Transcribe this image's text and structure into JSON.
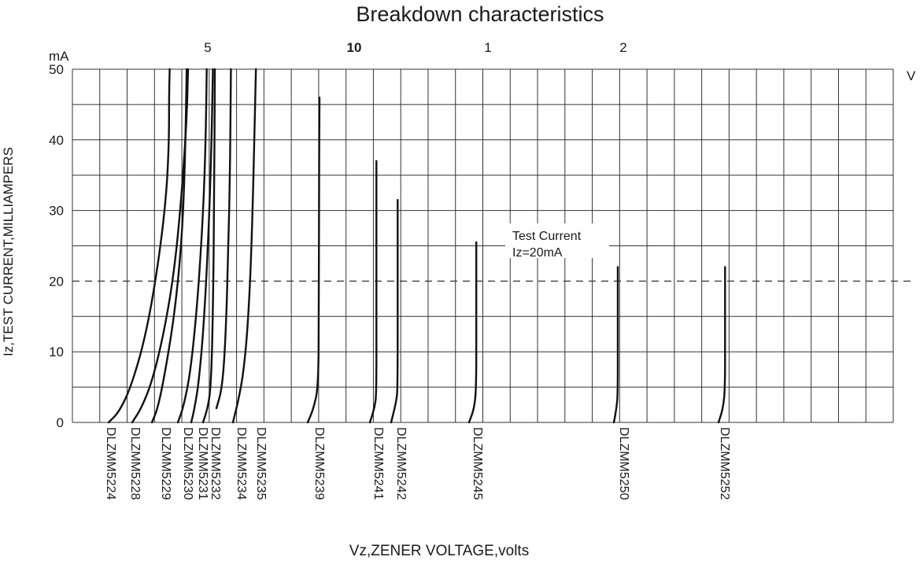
{
  "chart_data": {
    "type": "line",
    "title": "Breakdown characteristics",
    "xlabel": "Vz,ZENER VOLTAGE,volts",
    "ylabel": "Iz,TEST CURRENT,MILLIAMPERS",
    "y_unit": "mA",
    "x_unit": "V",
    "ylim": [
      0,
      50
    ],
    "y_ticks": [
      "0",
      "10",
      "20",
      "30",
      "40",
      "50"
    ],
    "x_scale_marks": [
      "5",
      "10",
      "1",
      "2"
    ],
    "grid": true,
    "reference_line": {
      "value": 20,
      "style": "dashed"
    },
    "annotation": [
      "Test Current",
      "Iz=20mA"
    ],
    "series": [
      {
        "name": "DLZMM5224",
        "points": [
          [
            0.0,
            0
          ],
          [
            0.16,
            1.5
          ],
          [
            0.34,
            5
          ],
          [
            0.56,
            12
          ],
          [
            0.75,
            22
          ],
          [
            0.88,
            32
          ],
          [
            0.92,
            40
          ],
          [
            0.92,
            46
          ],
          [
            0.93,
            50
          ]
        ]
      },
      {
        "name": "DLZMM5228",
        "points": [
          [
            0.0,
            0
          ],
          [
            0.14,
            2
          ],
          [
            0.31,
            6
          ],
          [
            0.49,
            13
          ],
          [
            0.65,
            22
          ],
          [
            0.76,
            33
          ],
          [
            0.83,
            43
          ],
          [
            0.85,
            50
          ]
        ]
      },
      {
        "name": "DLZMM5229",
        "points": [
          [
            0.0,
            0
          ],
          [
            0.09,
            2
          ],
          [
            0.2,
            7
          ],
          [
            0.34,
            15
          ],
          [
            0.45,
            25
          ],
          [
            0.5,
            35
          ],
          [
            0.53,
            50
          ]
        ]
      },
      {
        "name": "DLZMM5230",
        "points": [
          [
            0.0,
            0
          ],
          [
            0.08,
            2
          ],
          [
            0.19,
            7
          ],
          [
            0.29,
            16
          ],
          [
            0.37,
            27
          ],
          [
            0.42,
            38
          ],
          [
            0.44,
            50
          ]
        ]
      },
      {
        "name": "DLZMM5231",
        "points": [
          [
            0.0,
            0
          ],
          [
            0.05,
            2
          ],
          [
            0.12,
            6
          ],
          [
            0.2,
            15
          ],
          [
            0.27,
            28
          ],
          [
            0.31,
            40
          ],
          [
            0.33,
            50
          ]
        ]
      },
      {
        "name": "DLZMM5232",
        "points": [
          [
            0.0,
            0
          ],
          [
            0.07,
            2
          ],
          [
            0.12,
            5
          ],
          [
            0.15,
            15
          ],
          [
            0.17,
            32
          ],
          [
            0.18,
            50
          ]
        ]
      },
      {
        "name": "DLZMM5234",
        "points": [
          [
            0.0,
            2
          ],
          [
            0.09,
            5
          ],
          [
            0.14,
            12
          ],
          [
            0.18,
            24
          ],
          [
            0.21,
            37
          ],
          [
            0.22,
            50
          ]
        ]
      },
      {
        "name": "DLZMM5235",
        "points": [
          [
            0.0,
            0
          ],
          [
            0.08,
            3
          ],
          [
            0.16,
            7
          ],
          [
            0.23,
            14
          ],
          [
            0.29,
            26
          ],
          [
            0.35,
            50
          ]
        ]
      },
      {
        "name": "DLZMM5239",
        "points": [
          [
            0.0,
            0
          ],
          [
            0.09,
            2
          ],
          [
            0.16,
            5
          ],
          [
            0.17,
            15
          ],
          [
            0.17,
            30
          ],
          [
            0.18,
            46
          ]
        ]
      },
      {
        "name": "DLZMM5241",
        "points": [
          [
            0.0,
            0
          ],
          [
            0.07,
            2
          ],
          [
            0.1,
            4
          ],
          [
            0.1,
            15
          ],
          [
            0.1,
            37
          ]
        ]
      },
      {
        "name": "DLZMM5242",
        "points": [
          [
            0.0,
            0
          ],
          [
            0.08,
            3
          ],
          [
            0.1,
            5
          ],
          [
            0.1,
            20
          ],
          [
            0.1,
            31.5
          ]
        ]
      },
      {
        "name": "DLZMM5245",
        "points": [
          [
            0.0,
            0
          ],
          [
            0.08,
            2
          ],
          [
            0.11,
            5
          ],
          [
            0.11,
            15
          ],
          [
            0.11,
            25.5
          ]
        ]
      },
      {
        "name": "DLZMM5250",
        "points": [
          [
            0.0,
            0
          ],
          [
            0.04,
            2
          ],
          [
            0.06,
            4
          ],
          [
            0.06,
            12
          ],
          [
            0.06,
            22
          ]
        ]
      },
      {
        "name": "DLZMM5252",
        "points": [
          [
            0.0,
            0
          ],
          [
            0.07,
            2
          ],
          [
            0.1,
            5
          ],
          [
            0.1,
            12
          ],
          [
            0.1,
            22
          ]
        ]
      }
    ]
  }
}
